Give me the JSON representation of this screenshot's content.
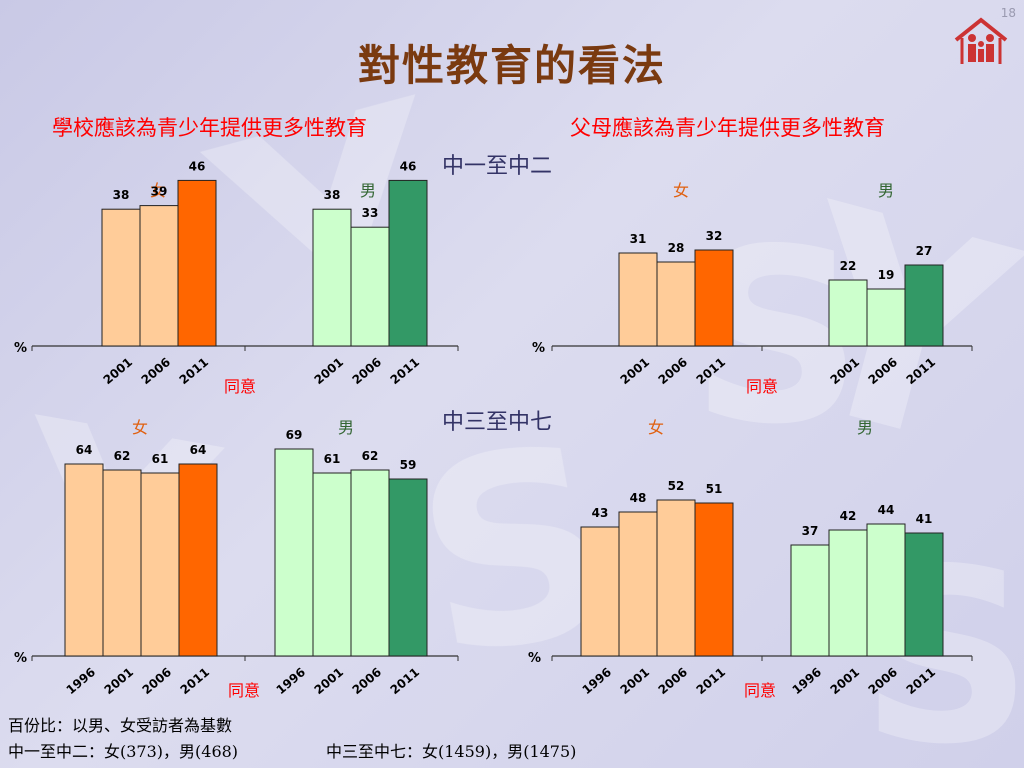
{
  "page": {
    "title": "對性教育的看法",
    "page_number": "18"
  },
  "columns": {
    "left_title": "學校應該為青少年提供更多性教育",
    "right_title": "父母應該為青少年提供更多性教育"
  },
  "groups": {
    "junior": "中一至中二",
    "senior": "中三至中七"
  },
  "footnotes": {
    "line1": "百份比：以男、女受訪者為基數",
    "line2_a": "中一至中二：女(373)，男(468)",
    "line2_b": "中三至中七：女(1459)，男(1475)"
  },
  "colors": {
    "female_light": "#ffcc99",
    "female_dark": "#ff6600",
    "male_light": "#ccffcc",
    "male_dark": "#339966",
    "female_label": "#e06010",
    "male_label": "#336633"
  },
  "chart_data": [
    {
      "type": "bar",
      "id": "school-junior",
      "ylim": [
        0,
        100
      ],
      "unit": "%",
      "xlabel": "同意",
      "series": [
        {
          "name": "女",
          "categories": [
            "2001",
            "2006",
            "2011"
          ],
          "values": [
            38,
            39,
            46
          ]
        },
        {
          "name": "男",
          "categories": [
            "2001",
            "2006",
            "2011"
          ],
          "values": [
            38,
            33,
            46
          ]
        }
      ]
    },
    {
      "type": "bar",
      "id": "parent-junior",
      "ylim": [
        0,
        100
      ],
      "unit": "%",
      "xlabel": "同意",
      "series": [
        {
          "name": "女",
          "categories": [
            "2001",
            "2006",
            "2011"
          ],
          "values": [
            31,
            28,
            32
          ]
        },
        {
          "name": "男",
          "categories": [
            "2001",
            "2006",
            "2011"
          ],
          "values": [
            22,
            19,
            27
          ]
        }
      ]
    },
    {
      "type": "bar",
      "id": "school-senior",
      "ylim": [
        0,
        100
      ],
      "unit": "%",
      "xlabel": "同意",
      "series": [
        {
          "name": "女",
          "categories": [
            "1996",
            "2001",
            "2006",
            "2011"
          ],
          "values": [
            64,
            62,
            61,
            64
          ]
        },
        {
          "name": "男",
          "categories": [
            "1996",
            "2001",
            "2006",
            "2011"
          ],
          "values": [
            69,
            61,
            62,
            59
          ]
        }
      ]
    },
    {
      "type": "bar",
      "id": "parent-senior",
      "ylim": [
        0,
        100
      ],
      "unit": "%",
      "xlabel": "同意",
      "series": [
        {
          "name": "女",
          "categories": [
            "1996",
            "2001",
            "2006",
            "2011"
          ],
          "values": [
            43,
            48,
            52,
            51
          ]
        },
        {
          "name": "男",
          "categories": [
            "1996",
            "2001",
            "2006",
            "2011"
          ],
          "values": [
            37,
            42,
            44,
            41
          ]
        }
      ]
    }
  ]
}
